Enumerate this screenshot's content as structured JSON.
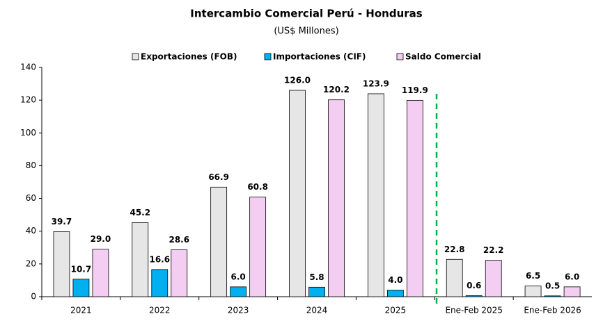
{
  "chart_data": {
    "type": "bar",
    "title": "Intercambio Comercial Perú - Honduras",
    "subtitle": "(US$ Millones)",
    "categories": [
      "2021",
      "2022",
      "2023",
      "2024",
      "2025",
      "Ene-Feb 2025",
      "Ene-Feb 2026"
    ],
    "series": [
      {
        "name": "Exportaciones (FOB)",
        "color": "#e7e6e6",
        "values": [
          39.7,
          45.2,
          66.9,
          126.0,
          123.9,
          22.8,
          6.5
        ],
        "value_labels": [
          "39.7",
          "45.2",
          "66.9",
          "126.0",
          "123.9",
          "22.8",
          "6.5"
        ]
      },
      {
        "name": "Importaciones (CIF)",
        "color": "#00b0f0",
        "values": [
          10.7,
          16.6,
          6.0,
          5.8,
          4.0,
          0.6,
          0.5
        ],
        "value_labels": [
          "10.7",
          "16.6",
          "6.0",
          "5.8",
          "4.0",
          "0.6",
          "0.5"
        ]
      },
      {
        "name": "Saldo Comercial",
        "color": "#f4cdf2",
        "values": [
          29.0,
          28.6,
          60.8,
          120.2,
          119.9,
          22.2,
          6.0
        ],
        "value_labels": [
          "29.0",
          "28.6",
          "60.8",
          "120.2",
          "119.9",
          "22.2",
          "6.0"
        ]
      }
    ],
    "ylim": [
      0,
      140
    ],
    "yticks": [
      0,
      20,
      40,
      60,
      80,
      100,
      120,
      140
    ],
    "legend": "top"
  }
}
